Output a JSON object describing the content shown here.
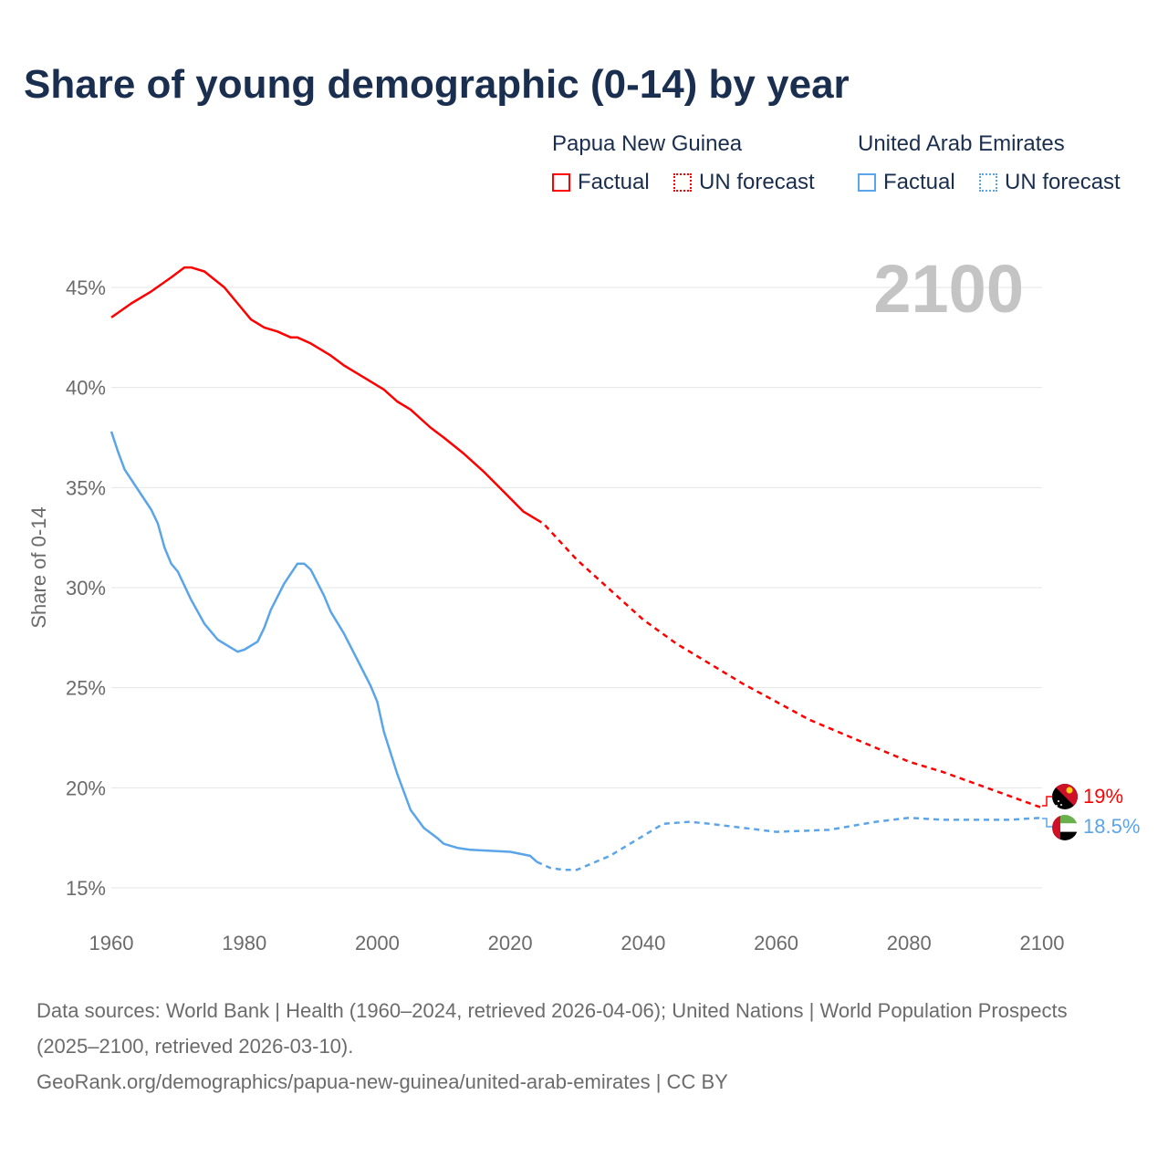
{
  "title": "Share of young demographic (0-14) by year",
  "legend": {
    "groups": [
      {
        "name": "Papua New Guinea",
        "factual": "Factual",
        "forecast": "UN forecast",
        "color": "#ff0000"
      },
      {
        "name": "United Arab Emirates",
        "factual": "Factual",
        "forecast": "UN forecast",
        "color": "#5aa5ea"
      }
    ]
  },
  "year_label": "2100",
  "end_labels": {
    "png": "19%",
    "uae": "18.5%"
  },
  "chart_data": {
    "type": "line",
    "title": "Share of young demographic (0-14) by year",
    "xlabel": "",
    "ylabel": "Share of 0-14",
    "xlim": [
      1960,
      2100
    ],
    "ylim": [
      15,
      45
    ],
    "x_ticks": [
      "1960",
      "1980",
      "2000",
      "2020",
      "2040",
      "2060",
      "2080",
      "2100"
    ],
    "x_tick_values": [
      1960,
      1980,
      2000,
      2020,
      2040,
      2060,
      2080,
      2100
    ],
    "y_ticks": [
      "15%",
      "20%",
      "25%",
      "30%",
      "35%",
      "40%",
      "45%"
    ],
    "y_tick_values": [
      15,
      20,
      25,
      30,
      35,
      40,
      45
    ],
    "grid": true,
    "legend_position": "top-right",
    "series": [
      {
        "name": "Papua New Guinea — Factual",
        "color": "#ff0000",
        "dashed": false,
        "x": [
          1960,
          1963,
          1966,
          1969,
          1971,
          1972,
          1974,
          1977,
          1979,
          1981,
          1983,
          1985,
          1987,
          1988,
          1990,
          1993,
          1995,
          1998,
          2001,
          2003,
          2005,
          2008,
          2010,
          2013,
          2016,
          2019,
          2022,
          2024
        ],
        "y": [
          43.5,
          44.2,
          44.8,
          45.5,
          46.0,
          46.0,
          45.8,
          45.0,
          44.2,
          43.4,
          43.0,
          42.8,
          42.5,
          42.5,
          42.2,
          41.6,
          41.1,
          40.5,
          39.9,
          39.3,
          38.9,
          38.0,
          37.5,
          36.7,
          35.8,
          34.8,
          33.8,
          33.4
        ]
      },
      {
        "name": "Papua New Guinea — UN forecast",
        "color": "#ff0000",
        "dashed": true,
        "x": [
          2024,
          2025,
          2030,
          2035,
          2040,
          2045,
          2050,
          2055,
          2060,
          2065,
          2070,
          2075,
          2080,
          2085,
          2090,
          2095,
          2100
        ],
        "y": [
          33.4,
          33.2,
          31.4,
          29.9,
          28.4,
          27.2,
          26.2,
          25.2,
          24.3,
          23.4,
          22.7,
          22.0,
          21.3,
          20.8,
          20.2,
          19.6,
          19.0
        ]
      },
      {
        "name": "United Arab Emirates — Factual",
        "color": "#5aa5ea",
        "dashed": false,
        "x": [
          1960,
          1961,
          1962,
          1964,
          1966,
          1967,
          1968,
          1969,
          1970,
          1972,
          1974,
          1975,
          1976,
          1978,
          1979,
          1980,
          1982,
          1983,
          1984,
          1986,
          1988,
          1989,
          1990,
          1992,
          1993,
          1995,
          1997,
          1999,
          2000,
          2001,
          2003,
          2004,
          2005,
          2007,
          2009,
          2010,
          2012,
          2014,
          2020,
          2023,
          2024
        ],
        "y": [
          37.8,
          36.8,
          35.9,
          34.9,
          33.9,
          33.2,
          32.0,
          31.2,
          30.8,
          29.4,
          28.2,
          27.8,
          27.4,
          27.0,
          26.8,
          26.9,
          27.3,
          28.0,
          28.9,
          30.2,
          31.2,
          31.2,
          30.9,
          29.6,
          28.8,
          27.7,
          26.4,
          25.1,
          24.3,
          22.8,
          20.7,
          19.8,
          18.9,
          18.0,
          17.5,
          17.2,
          17.0,
          16.9,
          16.8,
          16.6,
          16.3
        ]
      },
      {
        "name": "United Arab Emirates — UN forecast",
        "color": "#5aa5ea",
        "dashed": true,
        "x": [
          2024,
          2026,
          2028,
          2030,
          2035,
          2040,
          2043,
          2047,
          2050,
          2055,
          2060,
          2068,
          2075,
          2080,
          2085,
          2090,
          2095,
          2100
        ],
        "y": [
          16.3,
          16.0,
          15.9,
          15.9,
          16.6,
          17.6,
          18.2,
          18.3,
          18.2,
          18.0,
          17.8,
          17.9,
          18.3,
          18.5,
          18.4,
          18.4,
          18.4,
          18.5
        ]
      }
    ]
  },
  "sources": {
    "line1": "Data sources: World Bank | Health (1960–2024, retrieved 2026-04-06); United Nations | World Population Prospects (2025–2100, retrieved 2026-03-10).",
    "line2": "GeoRank.org/demographics/papua-new-guinea/united-arab-emirates | CC BY"
  }
}
